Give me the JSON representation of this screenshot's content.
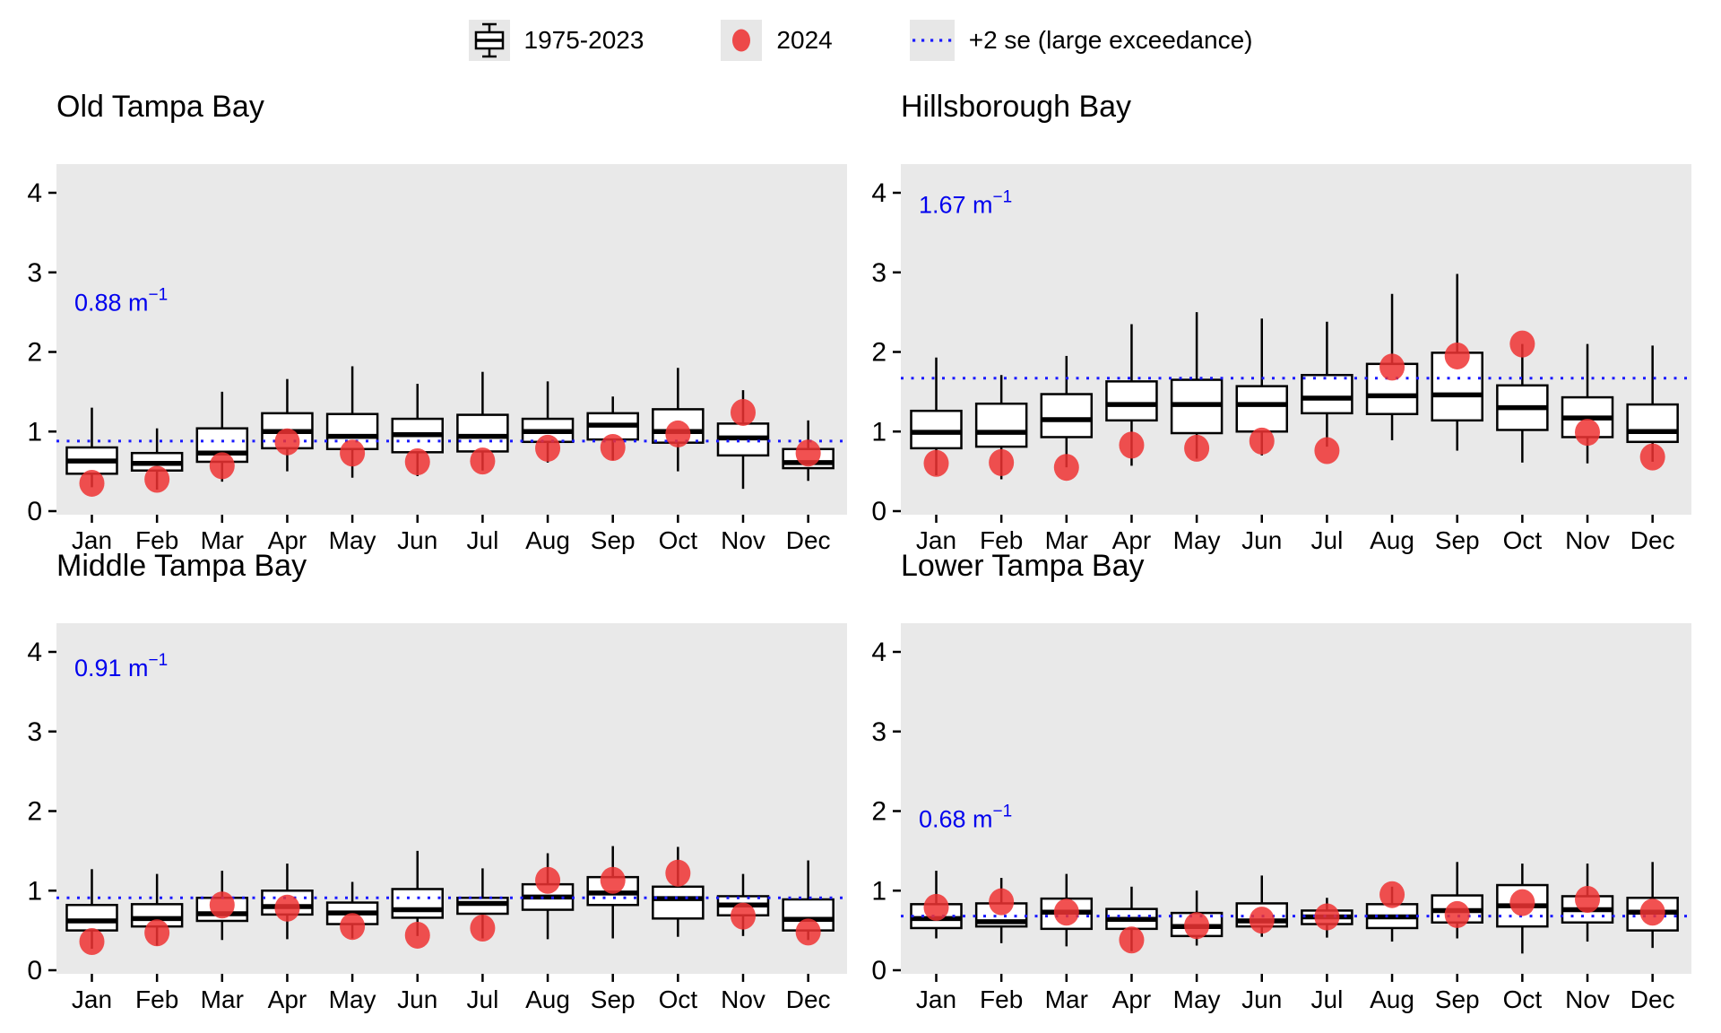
{
  "legend": {
    "items": [
      {
        "icon": "boxplot-icon",
        "label": "1975-2023"
      },
      {
        "icon": "red-dot-icon",
        "label": "2024"
      },
      {
        "icon": "dotted-line-icon",
        "label": "+2 se (large exceedance)"
      }
    ]
  },
  "months": [
    "Jan",
    "Feb",
    "Mar",
    "Apr",
    "May",
    "Jun",
    "Jul",
    "Aug",
    "Sep",
    "Oct",
    "Nov",
    "Dec"
  ],
  "y_ticks": [
    "0",
    "1",
    "2",
    "3",
    "4"
  ],
  "colors": {
    "red_dot": "#ee3333",
    "blue_line": "#1a1aff",
    "annotation_blue": "#0000ee",
    "panel_bg": "#e9e9e9",
    "box_fill": "#ffffff",
    "box_stroke": "#000000"
  },
  "chart_data": [
    {
      "type": "boxplot",
      "title": "Old Tampa Bay",
      "annotation": {
        "text": "0.88 m",
        "sup": "−1",
        "y": 2.62
      },
      "exceedance_line": {
        "y": 0.88,
        "label": "+2 se (large exceedance)"
      },
      "ylim": [
        0,
        4.35
      ],
      "legend_series": [
        "1975-2023",
        "2024"
      ],
      "categories": [
        "Jan",
        "Feb",
        "Mar",
        "Apr",
        "May",
        "Jun",
        "Jul",
        "Aug",
        "Sep",
        "Oct",
        "Nov",
        "Dec"
      ],
      "boxes": [
        {
          "month": "Jan",
          "lo": 0.3,
          "q1": 0.47,
          "med": 0.63,
          "q3": 0.8,
          "hi": 1.3,
          "dot": 0.35
        },
        {
          "month": "Feb",
          "lo": 0.27,
          "q1": 0.51,
          "med": 0.6,
          "q3": 0.73,
          "hi": 1.04,
          "dot": 0.4
        },
        {
          "month": "Mar",
          "lo": 0.37,
          "q1": 0.62,
          "med": 0.73,
          "q3": 1.04,
          "hi": 1.5,
          "dot": 0.57
        },
        {
          "month": "Apr",
          "lo": 0.5,
          "q1": 0.79,
          "med": 1.0,
          "q3": 1.23,
          "hi": 1.66,
          "dot": 0.87
        },
        {
          "month": "May",
          "lo": 0.42,
          "q1": 0.78,
          "med": 0.94,
          "q3": 1.22,
          "hi": 1.82,
          "dot": 0.73
        },
        {
          "month": "Jun",
          "lo": 0.44,
          "q1": 0.74,
          "med": 0.96,
          "q3": 1.16,
          "hi": 1.6,
          "dot": 0.62
        },
        {
          "month": "Jul",
          "lo": 0.51,
          "q1": 0.75,
          "med": 0.94,
          "q3": 1.21,
          "hi": 1.75,
          "dot": 0.63
        },
        {
          "month": "Aug",
          "lo": 0.61,
          "q1": 0.87,
          "med": 1.0,
          "q3": 1.16,
          "hi": 1.63,
          "dot": 0.79
        },
        {
          "month": "Sep",
          "lo": 0.64,
          "q1": 0.9,
          "med": 1.08,
          "q3": 1.23,
          "hi": 1.44,
          "dot": 0.8
        },
        {
          "month": "Oct",
          "lo": 0.5,
          "q1": 0.86,
          "med": 1.0,
          "q3": 1.28,
          "hi": 1.8,
          "dot": 0.97
        },
        {
          "month": "Nov",
          "lo": 0.28,
          "q1": 0.7,
          "med": 0.92,
          "q3": 1.1,
          "hi": 1.52,
          "dot": 1.24
        },
        {
          "month": "Dec",
          "lo": 0.38,
          "q1": 0.54,
          "med": 0.61,
          "q3": 0.78,
          "hi": 1.14,
          "dot": 0.73
        }
      ]
    },
    {
      "type": "boxplot",
      "title": "Hillsborough Bay",
      "annotation": {
        "text": "1.67 m",
        "sup": "−1",
        "y": 3.85
      },
      "exceedance_line": {
        "y": 1.67,
        "label": "+2 se (large exceedance)"
      },
      "ylim": [
        0,
        4.35
      ],
      "legend_series": [
        "1975-2023",
        "2024"
      ],
      "categories": [
        "Jan",
        "Feb",
        "Mar",
        "Apr",
        "May",
        "Jun",
        "Jul",
        "Aug",
        "Sep",
        "Oct",
        "Nov",
        "Dec"
      ],
      "boxes": [
        {
          "month": "Jan",
          "lo": 0.45,
          "q1": 0.79,
          "med": 0.99,
          "q3": 1.26,
          "hi": 1.93,
          "dot": 0.6
        },
        {
          "month": "Feb",
          "lo": 0.4,
          "q1": 0.81,
          "med": 0.99,
          "q3": 1.35,
          "hi": 1.71,
          "dot": 0.61
        },
        {
          "month": "Mar",
          "lo": 0.55,
          "q1": 0.93,
          "med": 1.15,
          "q3": 1.47,
          "hi": 1.95,
          "dot": 0.55
        },
        {
          "month": "Apr",
          "lo": 0.57,
          "q1": 1.14,
          "med": 1.34,
          "q3": 1.63,
          "hi": 2.35,
          "dot": 0.83
        },
        {
          "month": "May",
          "lo": 0.66,
          "q1": 0.98,
          "med": 1.34,
          "q3": 1.65,
          "hi": 2.5,
          "dot": 0.79
        },
        {
          "month": "Jun",
          "lo": 0.7,
          "q1": 1.0,
          "med": 1.34,
          "q3": 1.57,
          "hi": 2.42,
          "dot": 0.88
        },
        {
          "month": "Jul",
          "lo": 0.81,
          "q1": 1.23,
          "med": 1.42,
          "q3": 1.71,
          "hi": 2.38,
          "dot": 0.76
        },
        {
          "month": "Aug",
          "lo": 0.89,
          "q1": 1.22,
          "med": 1.45,
          "q3": 1.85,
          "hi": 2.73,
          "dot": 1.81
        },
        {
          "month": "Sep",
          "lo": 0.76,
          "q1": 1.14,
          "med": 1.46,
          "q3": 1.99,
          "hi": 2.98,
          "dot": 1.95
        },
        {
          "month": "Oct",
          "lo": 0.61,
          "q1": 1.02,
          "med": 1.3,
          "q3": 1.58,
          "hi": 2.1,
          "dot": 2.1
        },
        {
          "month": "Nov",
          "lo": 0.6,
          "q1": 0.93,
          "med": 1.17,
          "q3": 1.43,
          "hi": 2.1,
          "dot": 0.99
        },
        {
          "month": "Dec",
          "lo": 0.62,
          "q1": 0.87,
          "med": 1.0,
          "q3": 1.34,
          "hi": 2.08,
          "dot": 0.68
        }
      ]
    },
    {
      "type": "boxplot",
      "title": "Middle Tampa Bay",
      "annotation": {
        "text": "0.91 m",
        "sup": "−1",
        "y": 3.8
      },
      "exceedance_line": {
        "y": 0.91,
        "label": "+2 se (large exceedance)"
      },
      "ylim": [
        0,
        4.35
      ],
      "legend_series": [
        "1975-2023",
        "2024"
      ],
      "categories": [
        "Jan",
        "Feb",
        "Mar",
        "Apr",
        "May",
        "Jun",
        "Jul",
        "Aug",
        "Sep",
        "Oct",
        "Nov",
        "Dec"
      ],
      "boxes": [
        {
          "month": "Jan",
          "lo": 0.27,
          "q1": 0.5,
          "med": 0.62,
          "q3": 0.82,
          "hi": 1.27,
          "dot": 0.36
        },
        {
          "month": "Feb",
          "lo": 0.31,
          "q1": 0.55,
          "med": 0.65,
          "q3": 0.83,
          "hi": 1.21,
          "dot": 0.47
        },
        {
          "month": "Mar",
          "lo": 0.38,
          "q1": 0.62,
          "med": 0.71,
          "q3": 0.91,
          "hi": 1.25,
          "dot": 0.82
        },
        {
          "month": "Apr",
          "lo": 0.39,
          "q1": 0.7,
          "med": 0.8,
          "q3": 1.0,
          "hi": 1.34,
          "dot": 0.78
        },
        {
          "month": "May",
          "lo": 0.4,
          "q1": 0.58,
          "med": 0.72,
          "q3": 0.85,
          "hi": 1.11,
          "dot": 0.55
        },
        {
          "month": "Jun",
          "lo": 0.43,
          "q1": 0.66,
          "med": 0.76,
          "q3": 1.02,
          "hi": 1.5,
          "dot": 0.44
        },
        {
          "month": "Jul",
          "lo": 0.4,
          "q1": 0.71,
          "med": 0.84,
          "q3": 0.91,
          "hi": 1.28,
          "dot": 0.53
        },
        {
          "month": "Aug",
          "lo": 0.39,
          "q1": 0.76,
          "med": 0.92,
          "q3": 1.08,
          "hi": 1.47,
          "dot": 1.13
        },
        {
          "month": "Sep",
          "lo": 0.4,
          "q1": 0.82,
          "med": 0.97,
          "q3": 1.17,
          "hi": 1.56,
          "dot": 1.13
        },
        {
          "month": "Oct",
          "lo": 0.42,
          "q1": 0.65,
          "med": 0.9,
          "q3": 1.05,
          "hi": 1.55,
          "dot": 1.22
        },
        {
          "month": "Nov",
          "lo": 0.43,
          "q1": 0.69,
          "med": 0.82,
          "q3": 0.93,
          "hi": 1.21,
          "dot": 0.68
        },
        {
          "month": "Dec",
          "lo": 0.38,
          "q1": 0.5,
          "med": 0.64,
          "q3": 0.89,
          "hi": 1.38,
          "dot": 0.48
        }
      ]
    },
    {
      "type": "boxplot",
      "title": "Lower Tampa Bay",
      "annotation": {
        "text": "0.68 m",
        "sup": "−1",
        "y": 1.9
      },
      "exceedance_line": {
        "y": 0.68,
        "label": "+2 se (large exceedance)"
      },
      "ylim": [
        0,
        4.35
      ],
      "legend_series": [
        "1975-2023",
        "2024"
      ],
      "categories": [
        "Jan",
        "Feb",
        "Mar",
        "Apr",
        "May",
        "Jun",
        "Jul",
        "Aug",
        "Sep",
        "Oct",
        "Nov",
        "Dec"
      ],
      "boxes": [
        {
          "month": "Jan",
          "lo": 0.4,
          "q1": 0.53,
          "med": 0.65,
          "q3": 0.83,
          "hi": 1.25,
          "dot": 0.79
        },
        {
          "month": "Feb",
          "lo": 0.34,
          "q1": 0.55,
          "med": 0.61,
          "q3": 0.84,
          "hi": 1.16,
          "dot": 0.86
        },
        {
          "month": "Mar",
          "lo": 0.3,
          "q1": 0.52,
          "med": 0.73,
          "q3": 0.9,
          "hi": 1.21,
          "dot": 0.73
        },
        {
          "month": "Apr",
          "lo": 0.24,
          "q1": 0.52,
          "med": 0.64,
          "q3": 0.77,
          "hi": 1.05,
          "dot": 0.38
        },
        {
          "month": "May",
          "lo": 0.31,
          "q1": 0.43,
          "med": 0.55,
          "q3": 0.72,
          "hi": 1.0,
          "dot": 0.56
        },
        {
          "month": "Jun",
          "lo": 0.42,
          "q1": 0.55,
          "med": 0.62,
          "q3": 0.84,
          "hi": 1.19,
          "dot": 0.63
        },
        {
          "month": "Jul",
          "lo": 0.41,
          "q1": 0.58,
          "med": 0.67,
          "q3": 0.75,
          "hi": 0.91,
          "dot": 0.67
        },
        {
          "month": "Aug",
          "lo": 0.36,
          "q1": 0.53,
          "med": 0.67,
          "q3": 0.83,
          "hi": 1.05,
          "dot": 0.95
        },
        {
          "month": "Sep",
          "lo": 0.4,
          "q1": 0.6,
          "med": 0.75,
          "q3": 0.94,
          "hi": 1.36,
          "dot": 0.7
        },
        {
          "month": "Oct",
          "lo": 0.21,
          "q1": 0.55,
          "med": 0.81,
          "q3": 1.07,
          "hi": 1.34,
          "dot": 0.85
        },
        {
          "month": "Nov",
          "lo": 0.36,
          "q1": 0.6,
          "med": 0.76,
          "q3": 0.93,
          "hi": 1.34,
          "dot": 0.89
        },
        {
          "month": "Dec",
          "lo": 0.28,
          "q1": 0.5,
          "med": 0.73,
          "q3": 0.91,
          "hi": 1.36,
          "dot": 0.73
        }
      ]
    }
  ]
}
